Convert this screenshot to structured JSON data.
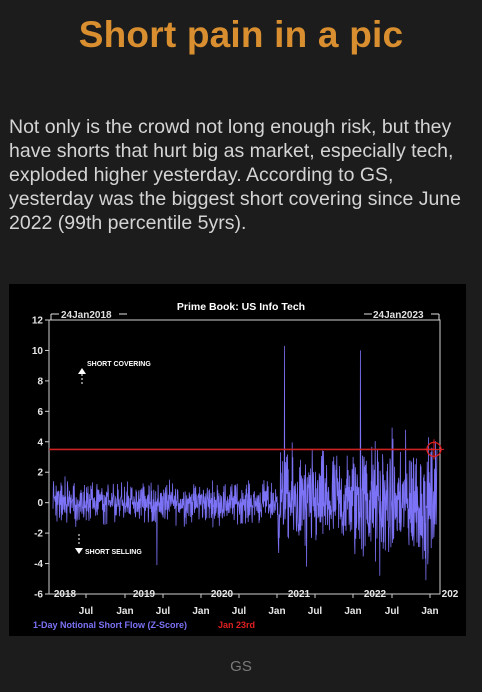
{
  "header": {
    "title": "Short pain in a pic"
  },
  "article": {
    "paragraph": "Not only is the crowd not long enough risk, but they have shorts that hurt big as market, especially tech, exploded higher yesterday. According to GS, yesterday was the biggest short covering since June 2022 (99th percentile 5yrs)."
  },
  "image_caption": "GS",
  "colors": {
    "title": "#d98f2f",
    "series": "#7b72f5",
    "threshold": "#cc2222",
    "background": "#1c1c1c"
  },
  "chart_data": {
    "type": "line",
    "title": "Prime Book: US Info Tech",
    "start_label": "24Jan2018",
    "end_label": "24Jan2023",
    "annotations": {
      "up": "SHORT COVERING",
      "down": "SHORT SELLING"
    },
    "ylim": [
      -6,
      12
    ],
    "yticks": [
      "12",
      "10",
      "8",
      "6",
      "4",
      "2",
      "0",
      "-2",
      "-4",
      "-6"
    ],
    "year_labels": [
      "2018",
      "2019",
      "2020",
      "2021",
      "2022",
      "202"
    ],
    "month_labels": [
      "Jul",
      "Jan",
      "Jul",
      "Jan",
      "Jul",
      "Jan",
      "Jul",
      "Jan",
      "Jul",
      "Jan"
    ],
    "legend": {
      "series": "1-Day Notional Short Flow (Z-Score)",
      "marker": "Jan 23rd"
    },
    "threshold": 3.5,
    "spikes": [
      {
        "x": "Jan 2021",
        "y": 10.3
      },
      {
        "x": "Jan 2022",
        "y": 10.0
      },
      {
        "x": "Jan 23rd 2023",
        "y": 3.5
      }
    ],
    "grid": false
  }
}
